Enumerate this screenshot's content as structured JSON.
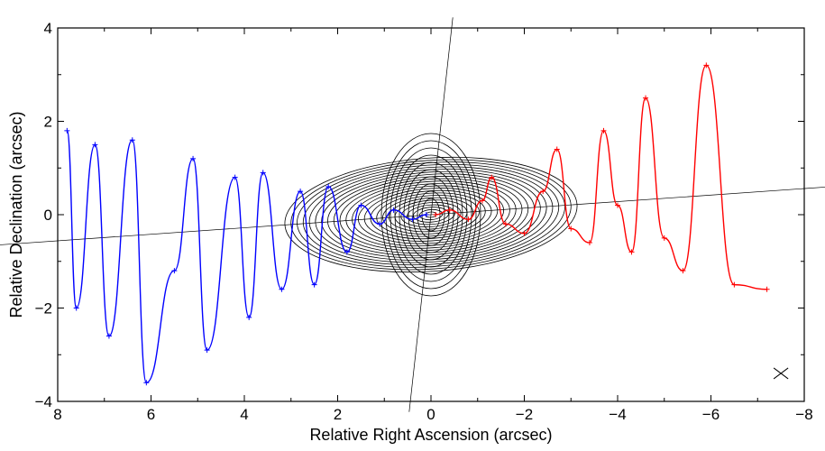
{
  "chart_data": {
    "type": "line",
    "title": "",
    "xlabel": "Relative Right Ascension (arcsec)",
    "ylabel": "Relative Declination (arcsec)",
    "xlim": [
      8,
      -8
    ],
    "ylim": [
      -4,
      4
    ],
    "x_ticks": [
      8,
      6,
      4,
      2,
      0,
      -2,
      -4,
      -6,
      -8
    ],
    "y_ticks": [
      4,
      2,
      0,
      -2,
      -4
    ],
    "x_tick_labels": [
      "8",
      "6",
      "4",
      "2",
      "0",
      "−2",
      "−4",
      "−6",
      "−8"
    ],
    "y_tick_labels": [
      "4",
      "2",
      "0",
      "−2",
      "−4"
    ],
    "grid": false,
    "contour_center": [
      0,
      0
    ],
    "series": [
      {
        "color": "#0000ff",
        "marker": "+",
        "points": [
          [
            7.8,
            1.8
          ],
          [
            7.6,
            -2.0
          ],
          [
            7.2,
            1.5
          ],
          [
            6.9,
            -2.6
          ],
          [
            6.4,
            1.6
          ],
          [
            6.1,
            -3.6
          ],
          [
            5.5,
            -1.2
          ],
          [
            5.1,
            1.2
          ],
          [
            4.8,
            -2.9
          ],
          [
            4.2,
            0.8
          ],
          [
            3.9,
            -2.2
          ],
          [
            3.6,
            0.9
          ],
          [
            3.2,
            -1.6
          ],
          [
            2.8,
            0.5
          ],
          [
            2.5,
            -1.5
          ],
          [
            2.2,
            0.6
          ],
          [
            1.8,
            -0.8
          ],
          [
            1.5,
            0.2
          ],
          [
            1.1,
            -0.2
          ],
          [
            0.8,
            0.1
          ],
          [
            0.4,
            -0.1
          ],
          [
            0.1,
            0.0
          ]
        ]
      },
      {
        "color": "#ff0000",
        "marker": "+",
        "points": [
          [
            -0.1,
            0.0
          ],
          [
            -0.4,
            0.1
          ],
          [
            -0.8,
            -0.1
          ],
          [
            -1.1,
            0.3
          ],
          [
            -1.3,
            0.8
          ],
          [
            -1.6,
            -0.2
          ],
          [
            -2.0,
            -0.4
          ],
          [
            -2.4,
            0.5
          ],
          [
            -2.7,
            1.4
          ],
          [
            -3.0,
            -0.3
          ],
          [
            -3.4,
            -0.6
          ],
          [
            -3.7,
            1.8
          ],
          [
            -4.0,
            0.2
          ],
          [
            -4.3,
            -0.8
          ],
          [
            -4.6,
            2.5
          ],
          [
            -5.0,
            -0.5
          ],
          [
            -5.4,
            -1.2
          ],
          [
            -5.9,
            3.2
          ],
          [
            -6.5,
            -1.5
          ],
          [
            -7.2,
            -1.6
          ]
        ]
      }
    ],
    "jet_axis": {
      "angle_deg": 4
    },
    "arrow": {
      "direction": "lower-right"
    }
  }
}
